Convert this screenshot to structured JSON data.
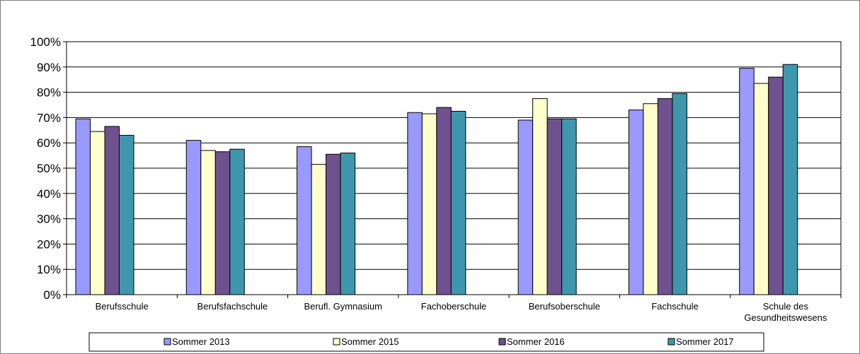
{
  "chart_data": {
    "type": "bar",
    "title": "",
    "xlabel": "",
    "ylabel": "",
    "ylim": [
      0,
      100
    ],
    "y_unit": "%",
    "y_ticks": [
      "0%",
      "10%",
      "20%",
      "30%",
      "40%",
      "50%",
      "60%",
      "70%",
      "80%",
      "90%",
      "100%"
    ],
    "grid": true,
    "legend_position": "bottom",
    "categories": [
      [
        "Berufsschule"
      ],
      [
        "Berufsfachschule"
      ],
      [
        "Berufl. Gymnasium"
      ],
      [
        "Fachoberschule"
      ],
      [
        "Berufsoberschule"
      ],
      [
        "Fachschule"
      ],
      [
        "Schule des",
        "Gesundheitswesens"
      ]
    ],
    "series": [
      {
        "name": "Sommer 2013",
        "color": "#9999ff",
        "values": [
          69.5,
          61,
          58.5,
          72,
          69,
          73,
          89.5
        ]
      },
      {
        "name": "Sommer 2015",
        "color": "#ffffcc",
        "values": [
          64.5,
          57,
          51.5,
          71.5,
          77.5,
          75.5,
          83.5
        ]
      },
      {
        "name": "Sommer 2016",
        "color": "#6f5190",
        "values": [
          66.5,
          56.5,
          55.5,
          74,
          69.5,
          77.5,
          86
        ]
      },
      {
        "name": "Sommer 2017",
        "color": "#3f97ad",
        "values": [
          63,
          57.5,
          56,
          72.5,
          69.5,
          79.5,
          91
        ]
      }
    ]
  }
}
